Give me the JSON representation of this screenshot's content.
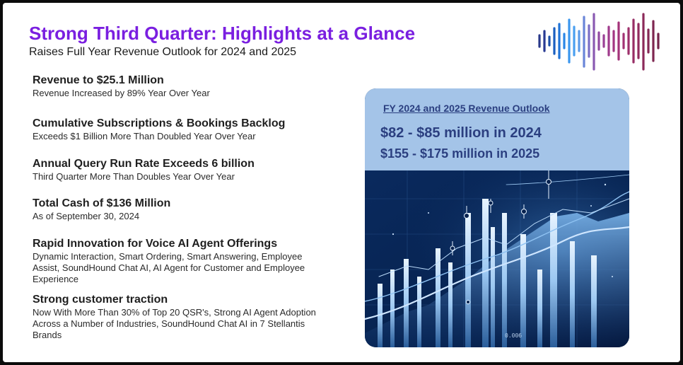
{
  "header": {
    "title": "Strong Third Quarter: Highlights at a Glance",
    "subtitle": "Raises Full Year Revenue Outlook for 2024 and 2025"
  },
  "highlights": [
    {
      "title": "Revenue to $25.1 Million",
      "body": "Revenue Increased by 89% Year Over Year"
    },
    {
      "title": "Cumulative Subscriptions & Bookings Backlog",
      "body": "Exceeds $1 Billion More Than Doubled Year Over Year"
    },
    {
      "title": "Annual Query Run Rate Exceeds 6 billion",
      "body": "Third Quarter More Than Doubles Year Over Year"
    },
    {
      "title": "Total Cash of $136 Million",
      "body": "As of September 30, 2024"
    },
    {
      "title": "Rapid Innovation for Voice AI Agent Offerings",
      "body": "Dynamic Interaction, Smart Ordering, Smart Answering, Employee Assist, SoundHound Chat AI, AI Agent for Customer and Employee Experience"
    },
    {
      "title": "Strong customer traction",
      "body": "Now With More Than 30% of Top 20 QSR's, Strong AI Agent Adoption Across a Number of Industries, SoundHound Chat AI in 7 Stellantis Brands"
    }
  ],
  "outlook": {
    "title": "FY 2024 and 2025 Revenue Outlook",
    "line1": "$82 - $85 million in 2024",
    "line2": "$155 - $175 million in 2025",
    "art_label": "0.006"
  },
  "colors": {
    "title": "#7a1fe0",
    "outlook_panel": "#a4c4e8",
    "outlook_text": "#2b3f80"
  }
}
